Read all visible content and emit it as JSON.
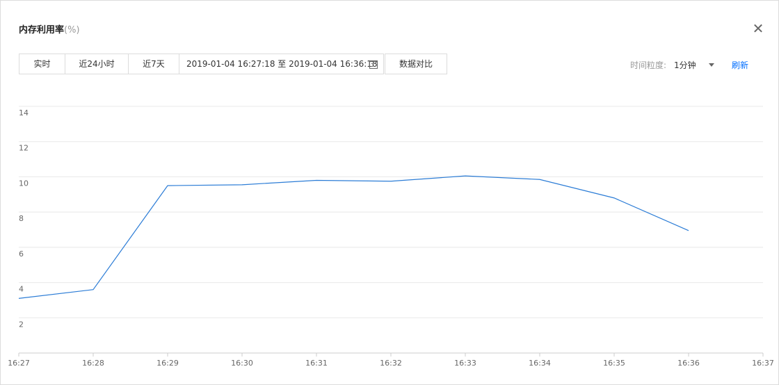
{
  "dialog": {
    "title": "内存利用率",
    "title_unit": "(%)",
    "close_icon": "close-icon"
  },
  "toolbar": {
    "realtime": "实时",
    "last24h": "近24小时",
    "last7d": "近7天",
    "date_range": "2019-01-04 16:27:18 至 2019-01-04 16:36:18",
    "calendar_icon": "calendar-icon",
    "compare": "数据对比",
    "granularity_label": "时间粒度:",
    "granularity_value": "1分钟",
    "refresh": "刷新"
  },
  "chart_data": {
    "type": "line",
    "x": [
      "16:27",
      "16:28",
      "16:29",
      "16:30",
      "16:31",
      "16:32",
      "16:33",
      "16:34",
      "16:35",
      "16:36",
      "16:37"
    ],
    "series": [
      {
        "name": "",
        "values": [
          3.1,
          3.6,
          9.5,
          9.55,
          9.8,
          9.75,
          10.05,
          9.85,
          8.8,
          6.95,
          null
        ]
      }
    ],
    "y_ticks": [
      2,
      4,
      6,
      8,
      10,
      12,
      14
    ],
    "ylim": [
      0,
      14
    ],
    "grid": true,
    "line_color": "#2b7cd6"
  }
}
